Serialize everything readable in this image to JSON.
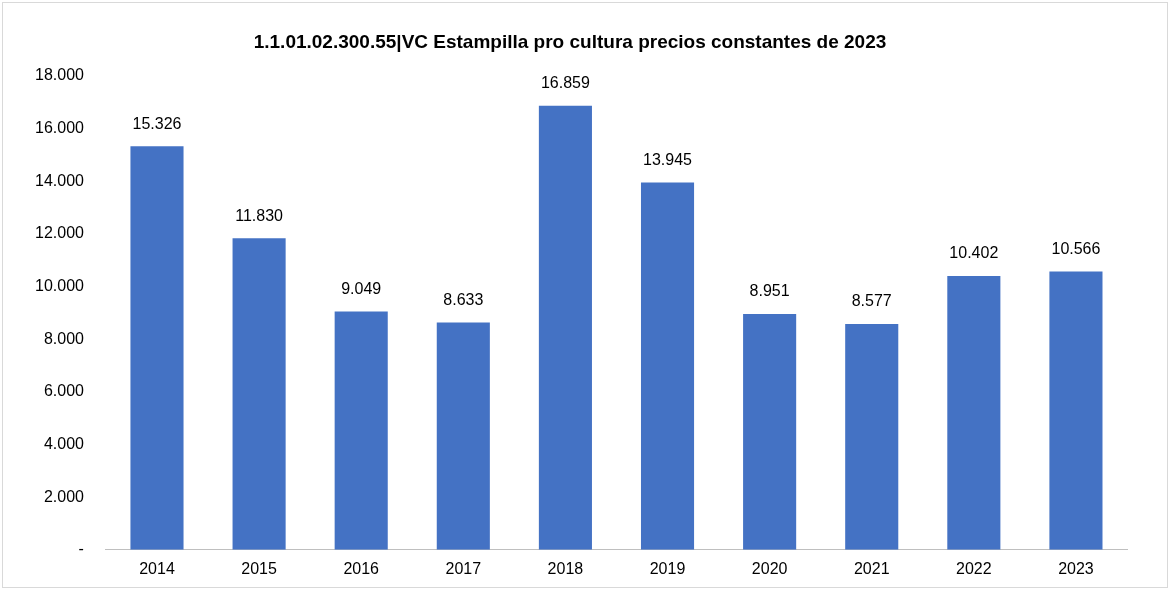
{
  "chart_data": {
    "type": "bar",
    "title": "1.1.01.02.300.55|VC Estampilla pro cultura precios constantes de 2023",
    "categories": [
      "2014",
      "2015",
      "2016",
      "2017",
      "2018",
      "2019",
      "2020",
      "2021",
      "2022",
      "2023"
    ],
    "values": [
      15326,
      11830,
      9049,
      8633,
      16859,
      13945,
      8951,
      8577,
      10402,
      10566
    ],
    "value_labels": [
      "15.326",
      "11.830",
      "9.049",
      "8.633",
      "16.859",
      "13.945",
      "8.951",
      "8.577",
      "10.402",
      "10.566"
    ],
    "color": "#4472c4",
    "ylim": [
      0,
      18000
    ],
    "yticks": [
      {
        "value": 0,
        "label": "-"
      },
      {
        "value": 2000,
        "label": "2.000"
      },
      {
        "value": 4000,
        "label": "4.000"
      },
      {
        "value": 6000,
        "label": "6.000"
      },
      {
        "value": 8000,
        "label": "8.000"
      },
      {
        "value": 10000,
        "label": "10.000"
      },
      {
        "value": 12000,
        "label": "12.000"
      },
      {
        "value": 14000,
        "label": "14.000"
      },
      {
        "value": 16000,
        "label": "16.000"
      },
      {
        "value": 18000,
        "label": "18.000"
      }
    ],
    "grid": false,
    "legend": false
  }
}
